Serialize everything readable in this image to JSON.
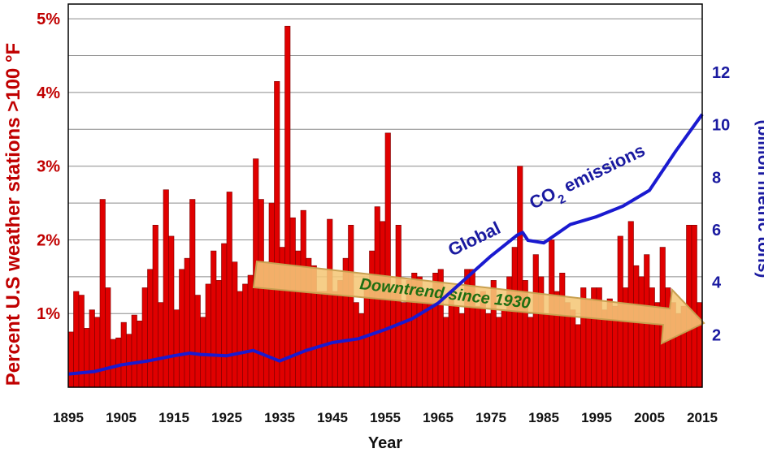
{
  "chart_data": {
    "type": "bar",
    "xlabel": "Year",
    "ylabel_left": "Percent U.S weather stations >100 °F",
    "ylabel_right": "(billion metric tons)",
    "x_ticks": [
      "1895",
      "1905",
      "1915",
      "1925",
      "1935",
      "1945",
      "1955",
      "1965",
      "1975",
      "1985",
      "1995",
      "2005",
      "2015"
    ],
    "y_left_ticks": [
      "1%",
      "2%",
      "3%",
      "4%",
      "5%"
    ],
    "y_right_ticks": [
      "2",
      "4",
      "6",
      "8",
      "10",
      "12"
    ],
    "ylim_left": [
      0,
      5.2
    ],
    "ylim_right": [
      0,
      14.6
    ],
    "xlim": [
      1895,
      2015
    ],
    "grid": "horizontal",
    "colors": {
      "bars": "#e00000",
      "co2_line": "#1a1ad0",
      "arrow": "#f5c778",
      "arrow_stroke": "#c8a050"
    },
    "series": [
      {
        "name": "Percent U.S weather stations >100 °F",
        "kind": "bar",
        "years": [
          1895,
          1896,
          1897,
          1898,
          1899,
          1900,
          1901,
          1902,
          1903,
          1904,
          1905,
          1906,
          1907,
          1908,
          1909,
          1910,
          1911,
          1912,
          1913,
          1914,
          1915,
          1916,
          1917,
          1918,
          1919,
          1920,
          1921,
          1922,
          1923,
          1924,
          1925,
          1926,
          1927,
          1928,
          1929,
          1930,
          1931,
          1932,
          1933,
          1934,
          1935,
          1936,
          1937,
          1938,
          1939,
          1940,
          1941,
          1942,
          1943,
          1944,
          1945,
          1946,
          1947,
          1948,
          1949,
          1950,
          1951,
          1952,
          1953,
          1954,
          1955,
          1956,
          1957,
          1958,
          1959,
          1960,
          1961,
          1962,
          1963,
          1964,
          1965,
          1966,
          1967,
          1968,
          1969,
          1970,
          1971,
          1972,
          1973,
          1974,
          1975,
          1976,
          1977,
          1978,
          1979,
          1980,
          1981,
          1982,
          1983,
          1984,
          1985,
          1986,
          1987,
          1988,
          1989,
          1990,
          1991,
          1992,
          1993,
          1994,
          1995,
          1996,
          1997,
          1998,
          1999,
          2000,
          2001,
          2002,
          2003,
          2004,
          2005,
          2006,
          2007,
          2008,
          2009,
          2010,
          2011,
          2012,
          2013,
          2014
        ],
        "values": [
          0.75,
          1.3,
          1.25,
          0.8,
          1.05,
          0.95,
          2.55,
          1.35,
          0.65,
          0.67,
          0.88,
          0.72,
          0.98,
          0.9,
          1.35,
          1.6,
          2.2,
          1.15,
          2.68,
          2.05,
          1.05,
          1.6,
          1.75,
          2.55,
          1.25,
          0.95,
          1.4,
          1.85,
          1.45,
          1.95,
          2.65,
          1.7,
          1.3,
          1.4,
          1.52,
          3.1,
          2.55,
          1.7,
          2.5,
          4.15,
          1.9,
          4.9,
          2.3,
          1.85,
          2.4,
          1.75,
          1.65,
          1.3,
          1.3,
          2.28,
          1.3,
          1.45,
          1.75,
          2.2,
          1.15,
          1.0,
          1.45,
          1.85,
          2.45,
          2.25,
          3.45,
          1.3,
          2.2,
          1.15,
          1.45,
          1.55,
          1.5,
          1.25,
          1.3,
          1.55,
          1.6,
          0.95,
          1.3,
          1.1,
          1.0,
          1.6,
          1.6,
          1.1,
          1.3,
          1.0,
          1.45,
          0.95,
          1.05,
          1.5,
          1.9,
          3.0,
          1.45,
          0.95,
          1.8,
          1.5,
          1.0,
          2.0,
          1.3,
          1.55,
          1.15,
          1.05,
          0.85,
          1.35,
          1.2,
          1.35,
          1.35,
          1.05,
          1.2,
          1.1,
          2.05,
          1.35,
          2.25,
          1.65,
          1.5,
          1.8,
          1.35,
          1.15,
          1.9,
          1.35,
          1.15,
          1.0,
          1.1,
          2.2,
          2.2,
          1.15
        ]
      },
      {
        "name": "Global CO2 emissions",
        "kind": "line",
        "axis": "right",
        "years": [
          1895,
          1900,
          1905,
          1910,
          1915,
          1918,
          1920,
          1925,
          1930,
          1935,
          1940,
          1945,
          1950,
          1955,
          1960,
          1965,
          1970,
          1975,
          1980,
          1981,
          1982,
          1985,
          1990,
          1995,
          2000,
          2005,
          2010,
          2015
        ],
        "values": [
          0.5,
          0.6,
          0.85,
          1.0,
          1.2,
          1.3,
          1.25,
          1.2,
          1.4,
          1.0,
          1.4,
          1.7,
          1.85,
          2.2,
          2.6,
          3.2,
          4.1,
          5.0,
          5.8,
          5.9,
          5.6,
          5.5,
          6.2,
          6.5,
          6.9,
          7.5,
          9.0,
          10.4
        ]
      }
    ],
    "annotations": {
      "co2_label_1": "Global",
      "co2_label_2": "CO",
      "co2_label_sub": "2",
      "co2_label_3": "emissions",
      "trend_label": "Downtrend since 1930"
    }
  }
}
